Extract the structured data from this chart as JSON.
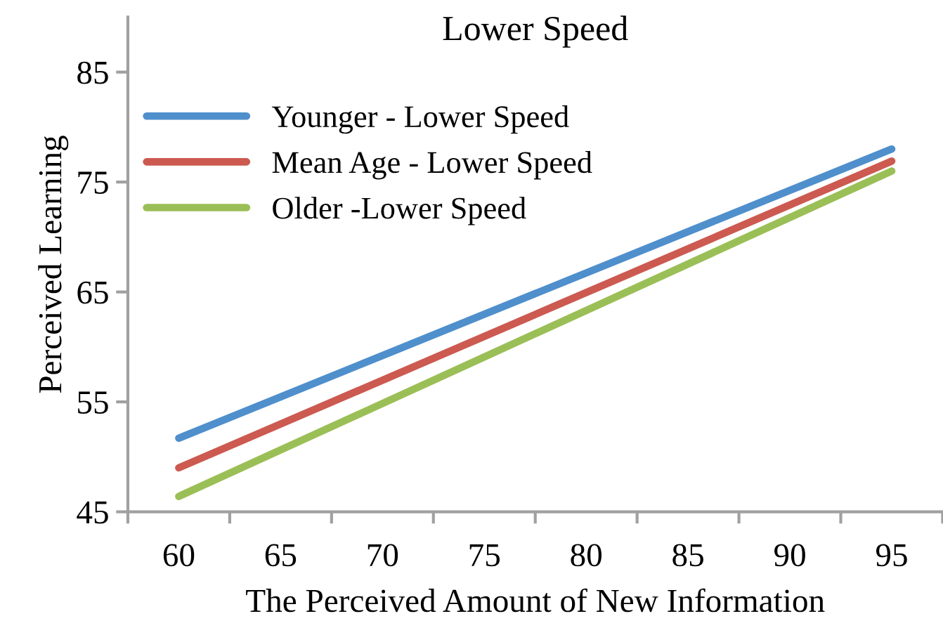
{
  "chart_data": {
    "type": "line",
    "title": "Lower Speed",
    "xlabel": "The Perceived Amount of New Information",
    "ylabel": "Perceived Learning",
    "x": [
      60,
      95
    ],
    "series": [
      {
        "name": "Younger - Lower Speed",
        "color": "#4f8fcc",
        "values": [
          51.7,
          78.0
        ]
      },
      {
        "name": "Mean Age - Lower Speed",
        "color": "#cc5a50",
        "values": [
          49.0,
          76.9
        ]
      },
      {
        "name": "Older -Lower Speed",
        "color": "#9bbf57",
        "values": [
          46.4,
          76.0
        ]
      }
    ],
    "xlim": [
      57.5,
      97.5
    ],
    "xticks": [
      {
        "value": 57.5,
        "label": null
      },
      60,
      {
        "value": 62.5,
        "label": null
      },
      65,
      {
        "value": 67.5,
        "label": null
      },
      70,
      {
        "value": 72.5,
        "label": null
      },
      75,
      {
        "value": 77.5,
        "label": null
      },
      80,
      {
        "value": 82.5,
        "label": null
      },
      85,
      {
        "value": 87.5,
        "label": null
      },
      90,
      {
        "value": 92.5,
        "label": null
      },
      95,
      {
        "value": 97.5,
        "label": null
      }
    ],
    "ylim": [
      45,
      90
    ],
    "yticks": [
      45,
      55,
      65,
      75,
      85
    ],
    "grid": false,
    "legend": "top left",
    "marker": "none",
    "line_style": "solid"
  }
}
